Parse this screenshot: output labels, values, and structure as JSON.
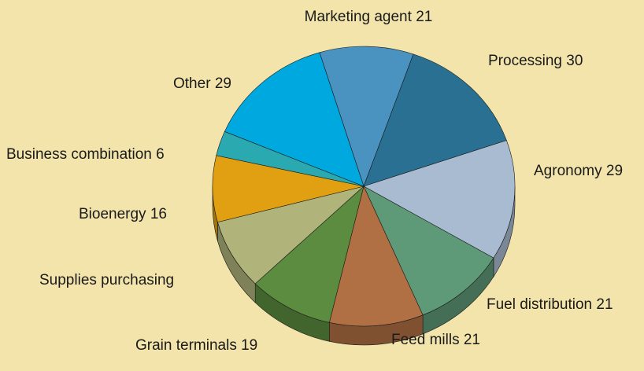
{
  "chart_data": {
    "type": "pie",
    "categories": [
      "Marketing agent",
      "Processing",
      "Agronomy",
      "Fuel distribution",
      "Feed mills",
      "Grain terminals",
      "Supplies purchasing",
      "Bioenergy",
      "Business combination",
      "Other"
    ],
    "values": [
      21,
      30,
      29,
      21,
      21,
      19,
      17,
      16,
      6,
      29
    ],
    "value_labels": [
      "21",
      "30",
      "29",
      "21",
      "21",
      "19",
      null,
      "16",
      "6",
      "29"
    ],
    "colors": [
      "#4a93c1",
      "#2a7092",
      "#a9bbd0",
      "#5f9a78",
      "#b07044",
      "#5c8c40",
      "#b1b47a",
      "#e0a012",
      "#2aaab0",
      "#00a8e0"
    ]
  }
}
